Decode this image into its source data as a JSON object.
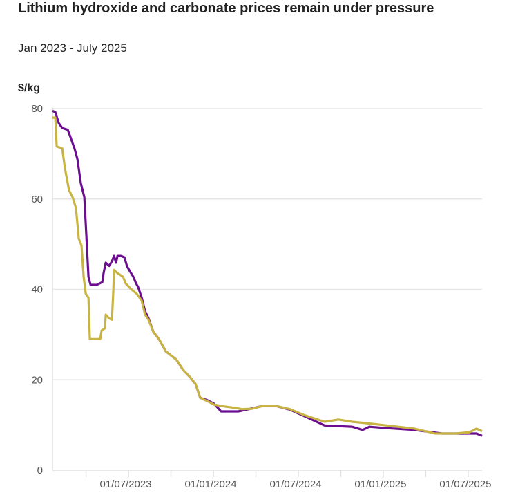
{
  "header": {
    "title": "Lithium hydroxide and carbonate prices remain under pressure",
    "subtitle": "Jan 2023 - July 2025"
  },
  "chart_data": {
    "type": "line",
    "title": "Lithium hydroxide and carbonate prices remain under pressure",
    "subtitle": "Jan 2023 - July 2025",
    "ylabel": "$/kg",
    "xlabel": "",
    "x_units": "months since 01/01/2023",
    "xlim": [
      0.63,
      30.98
    ],
    "ylim": [
      0,
      80
    ],
    "yticks": [
      0,
      20,
      40,
      60,
      80
    ],
    "ytick_labels": [
      "0",
      "20",
      "40",
      "60",
      "80"
    ],
    "xticks_minor": [
      3,
      6,
      9,
      12,
      15,
      18,
      21,
      24,
      27,
      30
    ],
    "xticks": [
      6,
      12,
      18,
      24,
      30
    ],
    "xtick_labels": [
      "01/07/2023",
      "01/01/2024",
      "01/07/2024",
      "01/01/2025",
      "01/07/2025"
    ],
    "grid": "horizontal",
    "legend": "none",
    "series": [
      {
        "id": "purple",
        "color": "#6b0f8f",
        "x": [
          0.63,
          0.83,
          1.07,
          1.32,
          1.71,
          1.9,
          2.2,
          2.39,
          2.63,
          2.88,
          3.02,
          3.17,
          3.32,
          3.76,
          4.15,
          4.24,
          4.39,
          4.63,
          4.83,
          4.98,
          5.12,
          5.22,
          5.46,
          5.71,
          5.9,
          6.1,
          6.34,
          6.54,
          6.68,
          6.93,
          7.17,
          7.41,
          7.76,
          8.15,
          8.63,
          9.37,
          9.85,
          10.34,
          10.73,
          11.07,
          11.56,
          12.05,
          12.54,
          13.51,
          13.76,
          14.49,
          15.46,
          16.44,
          17.41,
          18.39,
          19.85,
          21.8,
          22.54,
          23.02,
          24.24,
          26.2,
          28.15,
          30.59,
          30.98
        ],
        "y": [
          79.5,
          79.2,
          76.8,
          75.7,
          75.3,
          73.7,
          71,
          68.8,
          63.5,
          60.4,
          52,
          42.8,
          41,
          41,
          41.6,
          43.6,
          45.9,
          45.2,
          46.2,
          47.4,
          45.9,
          47.4,
          47.4,
          47.1,
          45.1,
          44,
          42.8,
          41.3,
          40.5,
          38.2,
          35.2,
          33.6,
          30.6,
          29,
          26.3,
          24.5,
          22.2,
          20.6,
          19.1,
          16,
          15.5,
          14.7,
          13,
          13,
          13,
          13.5,
          14.2,
          14.2,
          13.4,
          12,
          9.9,
          9.6,
          8.9,
          9.6,
          9.3,
          8.9,
          8.1,
          8.1,
          7.6
        ]
      },
      {
        "id": "gold",
        "color": "#c8b443",
        "x": [
          0.63,
          0.83,
          0.93,
          1.32,
          1.51,
          1.8,
          2.05,
          2.29,
          2.49,
          2.68,
          2.83,
          2.98,
          3.17,
          3.27,
          4.0,
          4.1,
          4.34,
          4.39,
          4.63,
          4.83,
          4.93,
          4.98,
          5.22,
          5.61,
          5.8,
          6.2,
          6.59,
          6.93,
          7.17,
          7.41,
          7.76,
          8.15,
          8.63,
          9.37,
          9.85,
          10.34,
          10.73,
          11.07,
          11.56,
          12.05,
          12.78,
          13.51,
          14.0,
          14.73,
          15.46,
          16.44,
          17.41,
          18.39,
          19.85,
          20.83,
          21.8,
          22.78,
          24.24,
          26.2,
          27.66,
          29.12,
          30.1,
          30.59,
          30.98
        ],
        "y": [
          78,
          78,
          71.6,
          71.2,
          66.8,
          61.9,
          60.4,
          58,
          51.2,
          49.7,
          42.8,
          39,
          38.2,
          29,
          29,
          30.9,
          31.4,
          34.4,
          33.6,
          33.3,
          39.8,
          44.3,
          43.6,
          42.8,
          41.3,
          40,
          39,
          37.5,
          34.4,
          33.3,
          30.6,
          29,
          26.3,
          24.5,
          22.2,
          20.6,
          19.1,
          16,
          15.3,
          14.5,
          14.1,
          13.8,
          13.5,
          13.6,
          14.2,
          14.2,
          13.5,
          12.2,
          10.7,
          11.2,
          10.7,
          10.4,
          9.9,
          9.2,
          8.1,
          8.1,
          8.4,
          9.2,
          8.6
        ]
      }
    ]
  }
}
